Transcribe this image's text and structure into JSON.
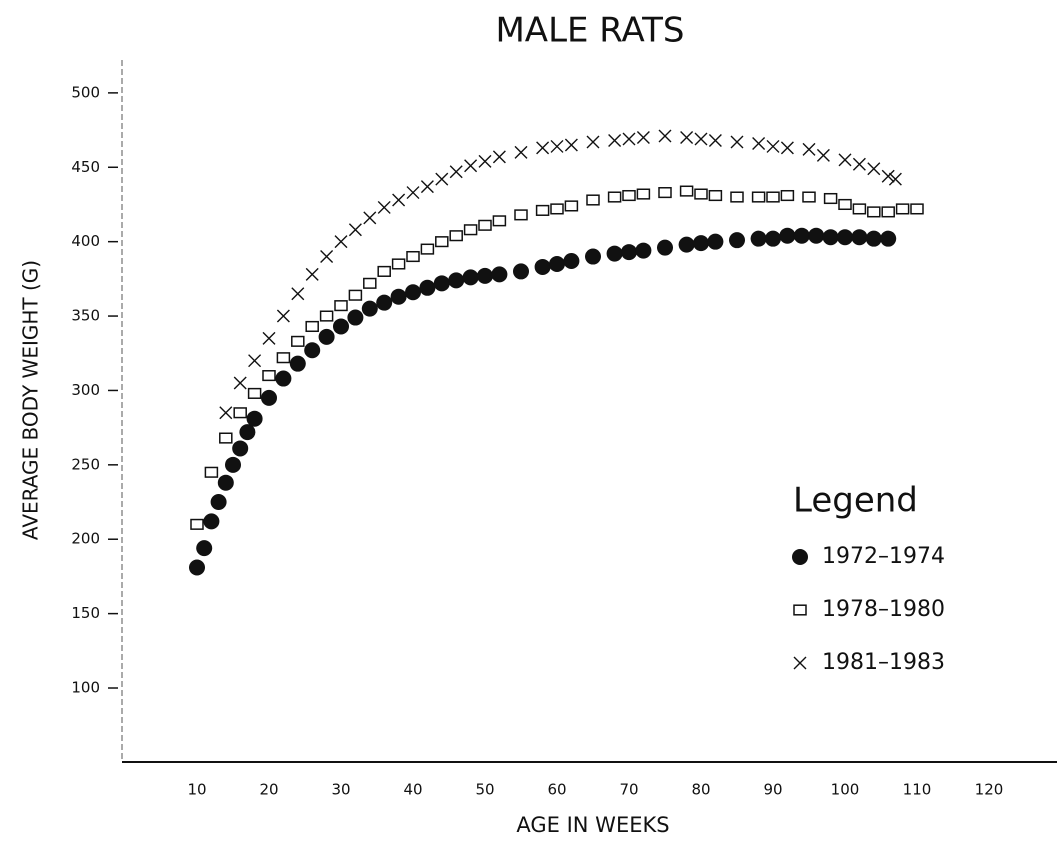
{
  "chart_data": {
    "type": "scatter",
    "title": "MALE RATS",
    "x_label": "AGE IN WEEKS",
    "y_label": "AVERAGE BODY WEIGHT (G)",
    "legend_title": "Legend",
    "legend_position": "lower right",
    "grid": false,
    "xlim": [
      0,
      128
    ],
    "ylim": [
      50,
      510
    ],
    "xticks": [
      10,
      20,
      30,
      40,
      50,
      60,
      70,
      80,
      90,
      100,
      110,
      120
    ],
    "yticks": [
      100,
      150,
      200,
      250,
      300,
      350,
      400,
      450,
      500
    ],
    "series": [
      {
        "name": "1972–1974",
        "color": "#111111",
        "marker": "circle",
        "x": [
          10,
          11,
          12,
          13,
          14,
          15,
          16,
          17,
          18,
          20,
          22,
          24,
          26,
          28,
          30,
          32,
          34,
          36,
          38,
          40,
          42,
          44,
          46,
          48,
          50,
          52,
          55,
          58,
          60,
          62,
          65,
          68,
          70,
          72,
          75,
          78,
          80,
          82,
          85,
          88,
          90,
          92,
          94,
          96,
          98,
          100,
          102,
          104,
          106
        ],
        "values": [
          181,
          194,
          212,
          225,
          238,
          250,
          261,
          272,
          281,
          295,
          308,
          318,
          327,
          336,
          343,
          349,
          355,
          359,
          363,
          366,
          369,
          372,
          374,
          376,
          377,
          378,
          380,
          383,
          385,
          387,
          390,
          392,
          393,
          394,
          396,
          398,
          399,
          400,
          401,
          402,
          402,
          404,
          404,
          404,
          403,
          403,
          403,
          402,
          402
        ]
      },
      {
        "name": "1978–1980",
        "color": "#111111",
        "marker": "square",
        "x": [
          10,
          12,
          14,
          16,
          18,
          20,
          22,
          24,
          26,
          28,
          30,
          32,
          34,
          36,
          38,
          40,
          42,
          44,
          46,
          48,
          50,
          52,
          55,
          58,
          60,
          62,
          65,
          68,
          70,
          72,
          75,
          78,
          80,
          82,
          85,
          88,
          90,
          92,
          95,
          98,
          100,
          102,
          104,
          106,
          108,
          110
        ],
        "values": [
          210,
          245,
          268,
          285,
          298,
          310,
          322,
          333,
          343,
          350,
          357,
          364,
          372,
          380,
          385,
          390,
          395,
          400,
          404,
          408,
          411,
          414,
          418,
          421,
          422,
          424,
          428,
          430,
          431,
          432,
          433,
          434,
          432,
          431,
          430,
          430,
          430,
          431,
          430,
          429,
          425,
          422,
          420,
          420,
          422,
          422
        ]
      },
      {
        "name": "1981–1983",
        "color": "#111111",
        "marker": "cross",
        "x": [
          14,
          16,
          18,
          20,
          22,
          24,
          26,
          28,
          30,
          32,
          34,
          36,
          38,
          40,
          42,
          44,
          46,
          48,
          50,
          52,
          55,
          58,
          60,
          62,
          65,
          68,
          70,
          72,
          75,
          78,
          80,
          82,
          85,
          88,
          90,
          92,
          95,
          97,
          100,
          102,
          104,
          106,
          107
        ],
        "values": [
          285,
          305,
          320,
          335,
          350,
          365,
          378,
          390,
          400,
          408,
          416,
          423,
          428,
          433,
          437,
          442,
          447,
          451,
          454,
          457,
          460,
          463,
          464,
          465,
          467,
          468,
          469,
          470,
          471,
          470,
          469,
          468,
          467,
          466,
          464,
          463,
          462,
          458,
          455,
          452,
          449,
          444,
          442
        ]
      }
    ]
  }
}
